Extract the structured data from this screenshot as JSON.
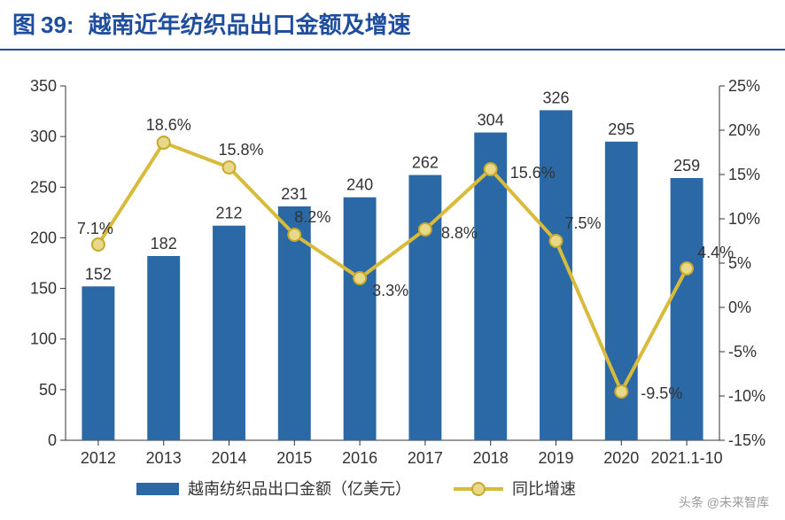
{
  "figure": {
    "prefix": "图",
    "number": "39:",
    "title": "越南近年纺织品出口金额及增速"
  },
  "chart": {
    "type": "bar+line",
    "background_color": "#ffffff",
    "plot_border_color": "#333333",
    "categories": [
      "2012",
      "2013",
      "2014",
      "2015",
      "2016",
      "2017",
      "2018",
      "2019",
      "2020",
      "2021.1-10"
    ],
    "bars": {
      "values": [
        152,
        182,
        212,
        231,
        240,
        262,
        304,
        326,
        295,
        259
      ],
      "labels": [
        "152",
        "182",
        "212",
        "231",
        "240",
        "262",
        "304",
        "326",
        "295",
        "259"
      ],
      "color": "#2a68a6",
      "width_ratio": 0.5,
      "legend": "越南纺织品出口金额（亿美元）"
    },
    "line": {
      "values": [
        7.1,
        18.6,
        15.8,
        8.2,
        3.3,
        8.8,
        15.6,
        7.5,
        -9.5,
        4.4
      ],
      "labels": [
        "7.1%",
        "18.6%",
        "15.8%",
        "8.2%",
        "3.3%",
        "8.8%",
        "15.6%",
        "7.5%",
        "-9.5%",
        "4.4%"
      ],
      "color": "#d9bb3b",
      "marker_fill": "#e8d98a",
      "marker_stroke": "#c7a92a",
      "marker_radius": 7,
      "line_width": 4,
      "legend": "同比增速"
    },
    "y_left": {
      "min": 0,
      "max": 350,
      "step": 50,
      "ticks": [
        "0",
        "50",
        "100",
        "150",
        "200",
        "250",
        "300",
        "350"
      ]
    },
    "y_right": {
      "min": -15,
      "max": 25,
      "step": 5,
      "ticks": [
        "-15%",
        "-10%",
        "-5%",
        "0%",
        "5%",
        "10%",
        "15%",
        "20%",
        "25%"
      ]
    },
    "fontsize_axis": 18,
    "fontsize_labels": 18,
    "tick_color": "#333333"
  },
  "watermark": "头条 @未来智库"
}
